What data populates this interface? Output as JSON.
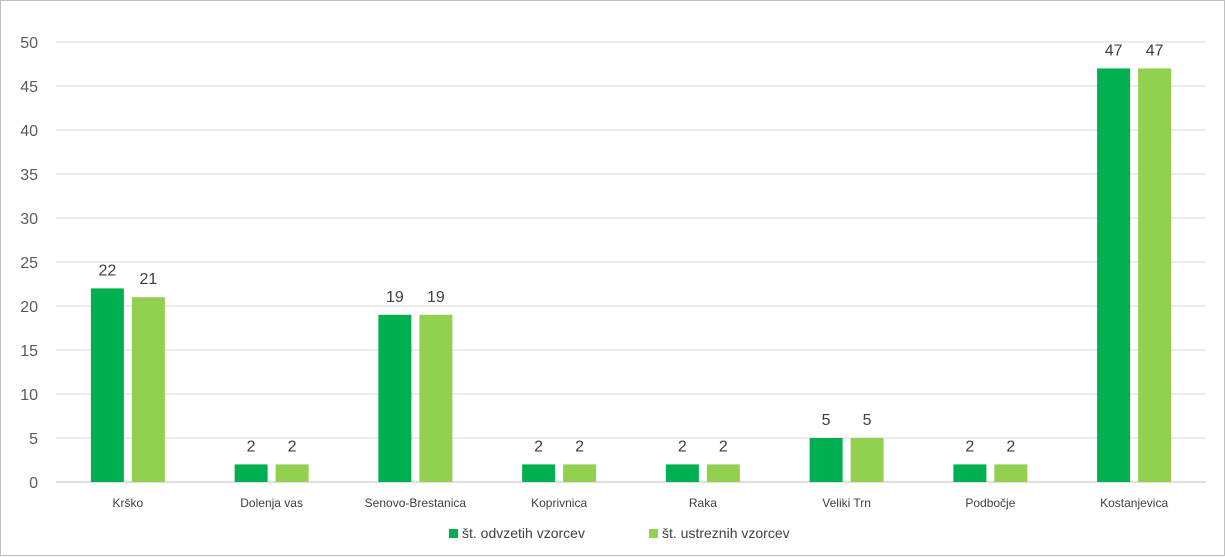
{
  "chart_data": {
    "type": "bar",
    "categories": [
      "Krško",
      "Dolenja vas",
      "Senovo-Brestanica",
      "Koprivnica",
      "Raka",
      "Veliki Trn",
      "Podbočje",
      "Kostanjevica"
    ],
    "series": [
      {
        "name": "št. odvzetih vzorcev",
        "color": "#00b050",
        "values": [
          22,
          2,
          19,
          2,
          2,
          5,
          2,
          47
        ]
      },
      {
        "name": "št. ustreznih vzorcev",
        "color": "#92d050",
        "values": [
          21,
          2,
          19,
          2,
          2,
          5,
          2,
          47
        ]
      }
    ],
    "ylim": [
      0,
      50
    ],
    "yticks": [
      0,
      5,
      10,
      15,
      20,
      25,
      30,
      35,
      40,
      45,
      50
    ],
    "grid": true,
    "legend_position": "bottom",
    "data_labels": true,
    "gridline_color": "#d9d9d9"
  }
}
